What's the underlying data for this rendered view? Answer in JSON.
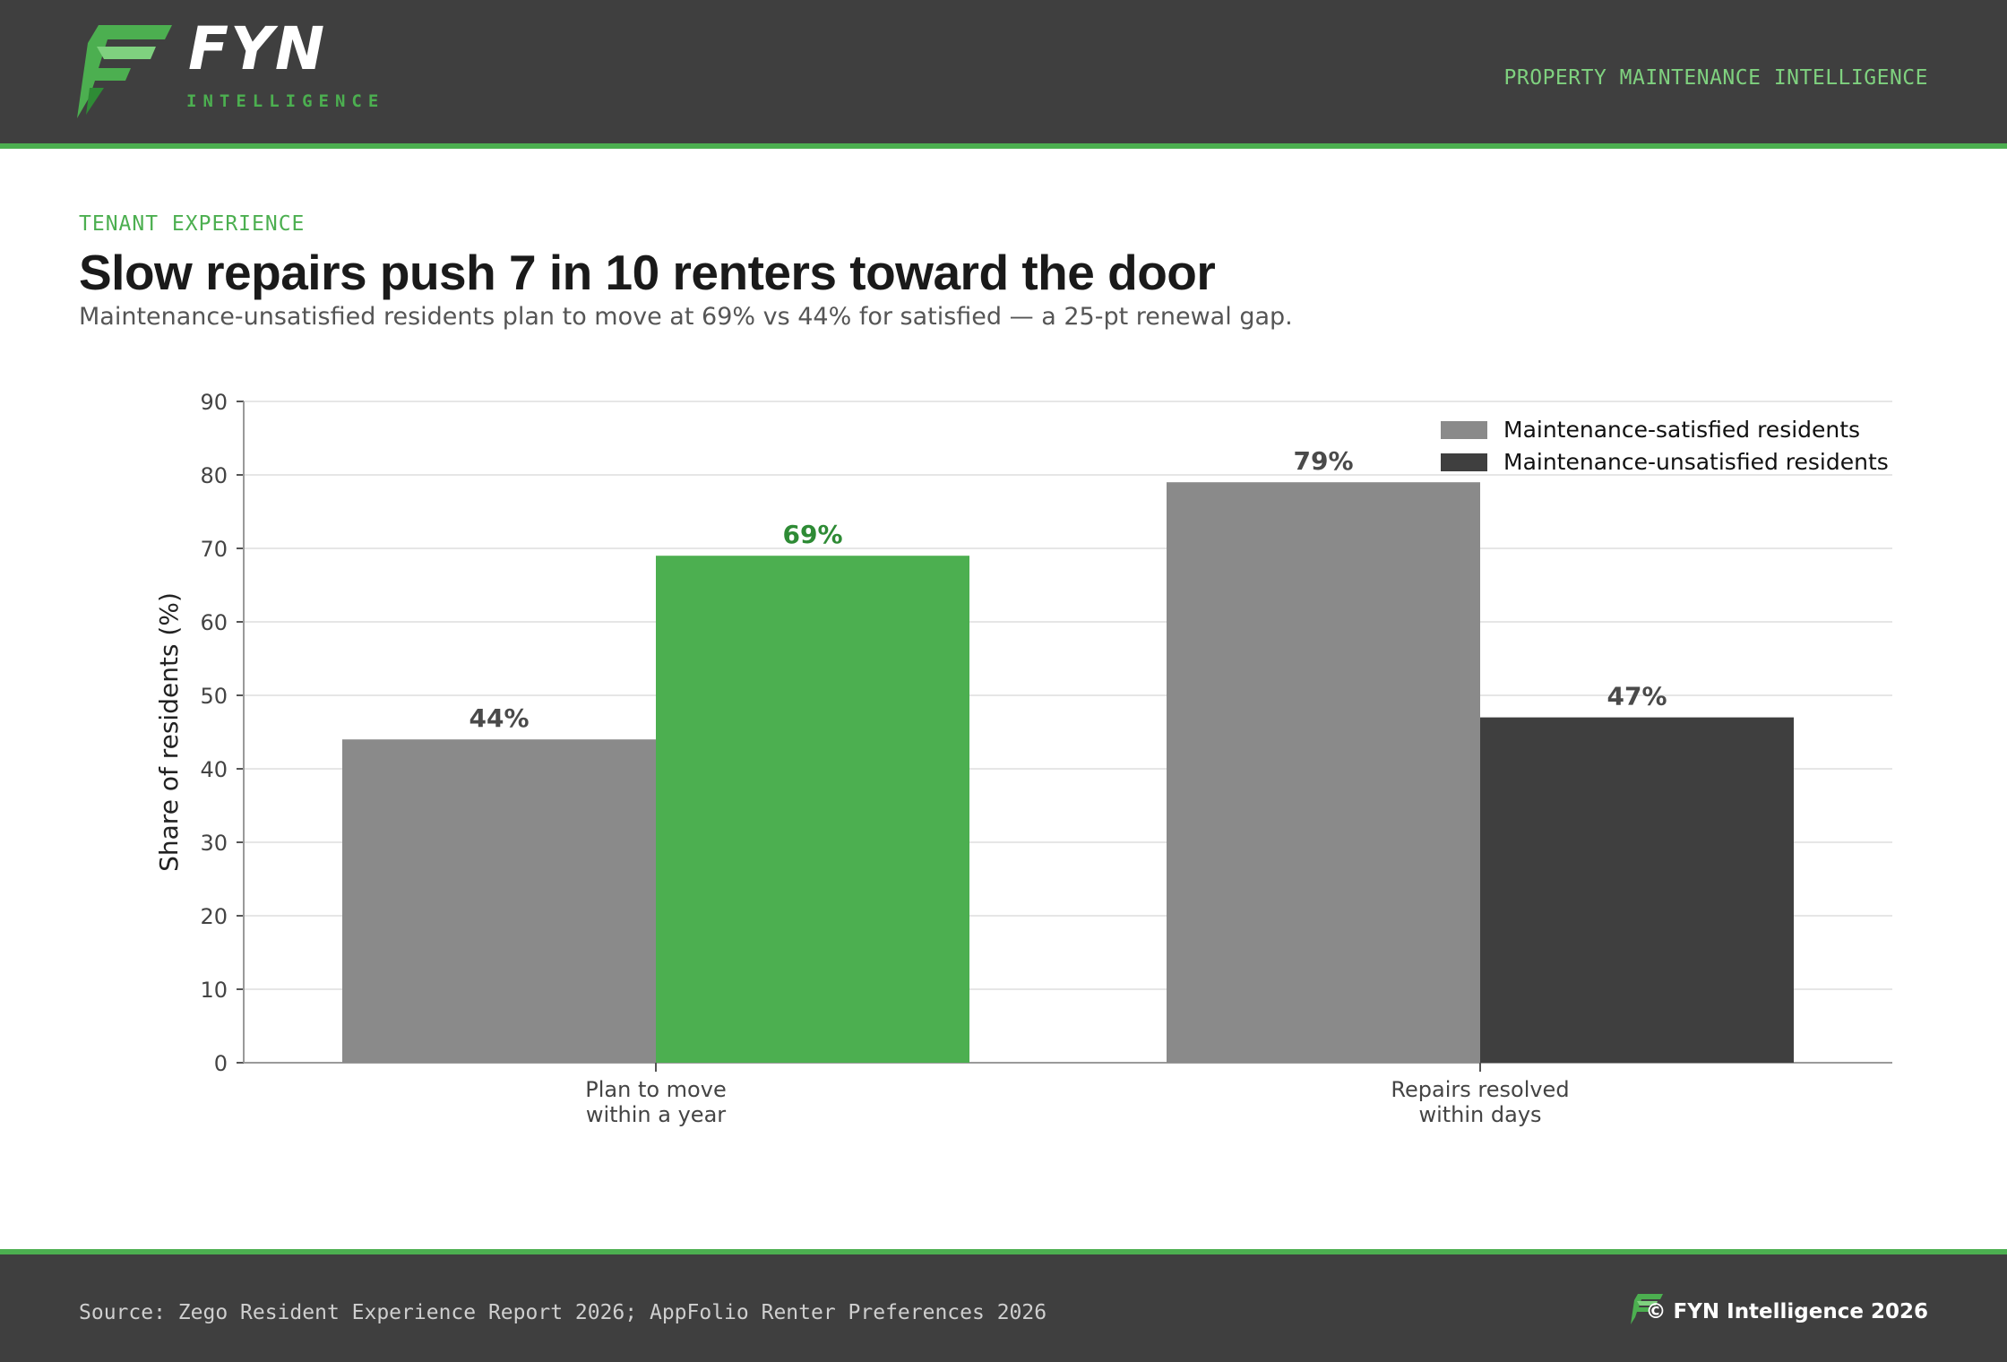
{
  "header": {
    "brand": "FYN",
    "brand_sub": "INTELLIGENCE",
    "tagline": "PROPERTY MAINTENANCE INTELLIGENCE"
  },
  "kicker": "TENANT EXPERIENCE",
  "title": "Slow repairs push 7 in 10 renters toward the door",
  "subtitle": "Maintenance-unsatisfied residents plan to move at 69% vs 44% for satisfied — a 25-pt renewal gap.",
  "footer": {
    "source": "Source: Zego Resident Experience Report 2026; AppFolio Renter Preferences 2026",
    "copyright": "© FYN Intelligence 2026"
  },
  "colors": {
    "header_bg": "#3f3f3f",
    "accent": "#4caf50",
    "satisfied": "#8a8a8a",
    "unsatisfied": "#3f3f3f",
    "highlight": "#4caf50"
  },
  "chart_data": {
    "type": "bar",
    "categories": [
      [
        "Plan to move",
        "within a year"
      ],
      [
        "Repairs resolved",
        "within days"
      ]
    ],
    "series": [
      {
        "name": "Maintenance-satisfied residents",
        "values": [
          44,
          79
        ]
      },
      {
        "name": "Maintenance-unsatisfied residents",
        "values": [
          69,
          47
        ]
      }
    ],
    "highlight": {
      "series": 1,
      "category": 0
    },
    "data_labels": [
      [
        "44%",
        "79%"
      ],
      [
        "69%",
        "47%"
      ]
    ],
    "ylabel": "Share of residents (%)",
    "ylim": [
      0,
      90
    ],
    "yticks": [
      0,
      10,
      20,
      30,
      40,
      50,
      60,
      70,
      80,
      90
    ],
    "grid": true,
    "legend_position": "top-right"
  }
}
